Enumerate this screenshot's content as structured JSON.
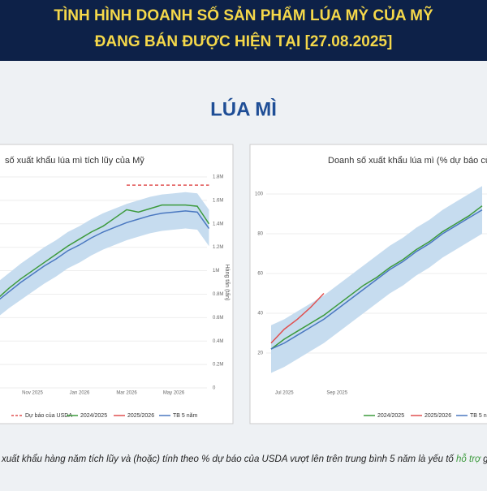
{
  "header": {
    "title_line1": "TÌNH HÌNH DOANH SỐ SẢN PHẨM LÚA MỲ CỦA MỸ",
    "title_line2": "ĐANG BÁN ĐƯỢC HIỆN TẠI [27.08.2025]",
    "section": "LÚA MÌ"
  },
  "footer": {
    "before": "xuất khẩu hàng năm tích lũy và (hoặc) tính theo % dự báo của USDA vượt lên trên trung bình 5 năm là yếu tố ",
    "highlight": "hỗ trợ",
    "after": " giá"
  },
  "chart_data": [
    {
      "type": "line",
      "title": "số xuất khẩu lúa mì tích lũy của Mỹ",
      "ylabel": "Hàng tấn (tấn)",
      "categories": [
        null,
        null,
        null,
        "Nov 2025",
        null,
        null,
        null,
        "Jan 2026",
        null,
        null,
        null,
        "Mar 2026",
        null,
        null,
        null,
        "May 2026",
        null,
        null,
        null
      ],
      "ylim": [
        0,
        1800000
      ],
      "yticks": [
        0,
        {
          "value": 200000,
          "label": "0.2M"
        },
        {
          "value": 400000,
          "label": "0.4M"
        },
        {
          "value": 600000,
          "label": "0.6M"
        },
        {
          "value": 800000,
          "label": "0.8M"
        },
        {
          "value": 1000000,
          "label": "1M"
        },
        {
          "value": 1200000,
          "label": "1.2M"
        },
        {
          "value": 1400000,
          "label": "1.4M"
        },
        {
          "value": 1600000,
          "label": "1.6M"
        },
        {
          "value": 1800000,
          "label": "1.8M"
        }
      ],
      "band": {
        "color": "#c6dcef",
        "lower": [
          600000,
          680000,
          750000,
          820000,
          890000,
          950000,
          1020000,
          1070000,
          1130000,
          1180000,
          1220000,
          1260000,
          1290000,
          1320000,
          1340000,
          1350000,
          1360000,
          1350000,
          1210000
        ],
        "upper": [
          900000,
          980000,
          1060000,
          1130000,
          1200000,
          1260000,
          1330000,
          1380000,
          1440000,
          1490000,
          1530000,
          1570000,
          1600000,
          1630000,
          1650000,
          1660000,
          1670000,
          1660000,
          1520000
        ]
      },
      "series": [
        {
          "name": "Dự báo của USDA",
          "color": "#e05050",
          "dashed": true,
          "values": [
            null,
            null,
            null,
            null,
            null,
            null,
            null,
            null,
            null,
            null,
            null,
            1730000,
            1730000,
            1730000,
            1730000,
            1730000,
            1730000,
            1730000,
            1730000
          ]
        },
        {
          "name": "2024/2025",
          "color": "#3c9a3c",
          "values": [
            760000,
            850000,
            930000,
            1000000,
            1070000,
            1140000,
            1210000,
            1270000,
            1330000,
            1380000,
            1450000,
            1520000,
            1500000,
            1530000,
            1560000,
            1560000,
            1560000,
            1550000,
            1400000
          ]
        },
        {
          "name": "2025/2026",
          "color": "#e05050",
          "values": [
            null,
            null,
            null,
            null,
            null,
            null,
            null,
            null,
            null,
            null,
            null,
            null,
            null,
            null,
            null,
            null,
            null,
            null,
            null
          ]
        },
        {
          "name": "TB 5 năm",
          "color": "#4a78c0",
          "values": [
            740000,
            820000,
            900000,
            970000,
            1040000,
            1100000,
            1170000,
            1220000,
            1280000,
            1330000,
            1370000,
            1410000,
            1440000,
            1470000,
            1490000,
            1500000,
            1510000,
            1500000,
            1360000
          ]
        }
      ]
    },
    {
      "type": "line",
      "title": "Doanh số xuất khẩu lúa mì (% dự báo của USDA)",
      "categories": [
        null,
        "Jul 2025",
        null,
        null,
        null,
        "Sep 2025",
        null,
        null,
        null,
        null,
        null,
        null,
        null,
        null,
        null,
        null,
        null
      ],
      "ylim": [
        5,
        110
      ],
      "yticks": [
        20,
        40,
        60,
        80,
        100
      ],
      "band": {
        "color": "#c6dcef",
        "lower": [
          10,
          13,
          17,
          21,
          25,
          30,
          35,
          40,
          45,
          50,
          54,
          59,
          63,
          68,
          72,
          76,
          80
        ],
        "upper": [
          34,
          37,
          41,
          45,
          49,
          54,
          59,
          64,
          69,
          74,
          78,
          83,
          87,
          92,
          96,
          100,
          104
        ]
      },
      "series": [
        {
          "name": "2024/2025",
          "color": "#3c9a3c",
          "values": [
            22,
            27,
            31,
            35,
            39,
            44,
            49,
            54,
            58,
            63,
            67,
            72,
            76,
            81,
            85,
            89,
            94
          ]
        },
        {
          "name": "2025/2026",
          "color": "#e05050",
          "values": [
            25,
            32,
            37,
            43,
            50,
            null,
            null,
            null,
            null,
            null,
            null,
            null,
            null,
            null,
            null,
            null,
            null
          ]
        },
        {
          "name": "TB 5 năm",
          "color": "#4a78c0",
          "values": [
            22,
            25,
            29,
            33,
            37,
            42,
            47,
            52,
            57,
            62,
            66,
            71,
            75,
            80,
            84,
            88,
            92
          ]
        }
      ]
    }
  ]
}
